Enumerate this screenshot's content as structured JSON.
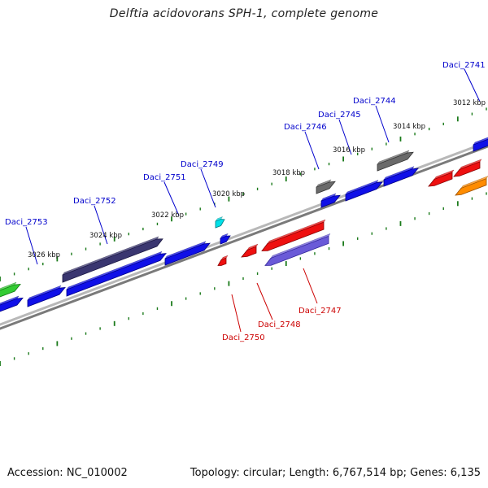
{
  "title": "Delftia acidovorans SPH-1, complete genome",
  "footer": {
    "accession": "Accession: NC_010002",
    "summary": "Topology: circular; Length: 6,767,514 bp; Genes: 6,135"
  },
  "colors": {
    "forward_label": "#0000cc",
    "reverse_label": "#cc0000",
    "tick": "#1a7a1a",
    "backbone": "#888888"
  },
  "scale_labels": [
    "3012 kbp",
    "3014 kbp",
    "3016 kbp",
    "3018 kbp",
    "3020 kbp",
    "3022 kbp",
    "3024 kbp",
    "3026 kbp"
  ],
  "gene_labels": {
    "forward": [
      "Daci_2741",
      "Daci_2744",
      "Daci_2745",
      "Daci_2746",
      "Daci_2749",
      "Daci_2751",
      "Daci_2752",
      "Daci_2753"
    ],
    "reverse": [
      "Daci_2747",
      "Daci_2748",
      "Daci_2750"
    ]
  }
}
